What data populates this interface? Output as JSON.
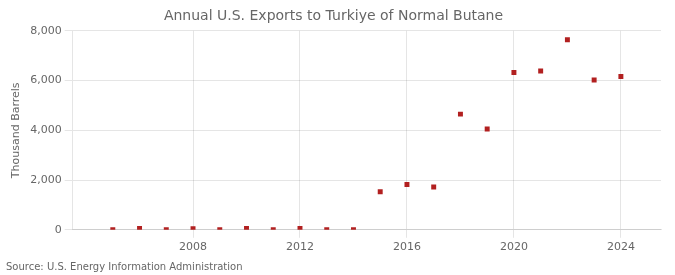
{
  "chart_data": {
    "type": "scatter",
    "title": "Annual U.S. Exports to Turkiye of Normal Butane",
    "ylabel": "Thousand Barrels",
    "source": "Source: U.S. Energy Information Administration",
    "x": [
      2005,
      2006,
      2007,
      2008,
      2009,
      2010,
      2011,
      2012,
      2013,
      2014,
      2015,
      2016,
      2017,
      2018,
      2019,
      2020,
      2021,
      2022,
      2023,
      2024
    ],
    "values": [
      5,
      55,
      2,
      45,
      2,
      55,
      2,
      50,
      2,
      2,
      1530,
      1820,
      1720,
      4650,
      4050,
      6320,
      6380,
      7640,
      6020,
      6160
    ],
    "color": "#b22020",
    "marker": "square",
    "xlim": [
      2003.5,
      2025.5
    ],
    "xticks": [
      2008,
      2012,
      2016,
      2020,
      2024
    ],
    "ylim": [
      0,
      8000
    ],
    "yticks": [
      0,
      {
        "value": 2000,
        "label": "2,000"
      },
      {
        "value": 4000,
        "label": "4,000"
      },
      {
        "value": 6000,
        "label": "6,000"
      },
      {
        "value": 8000,
        "label": "8,000"
      }
    ],
    "grid": true
  }
}
